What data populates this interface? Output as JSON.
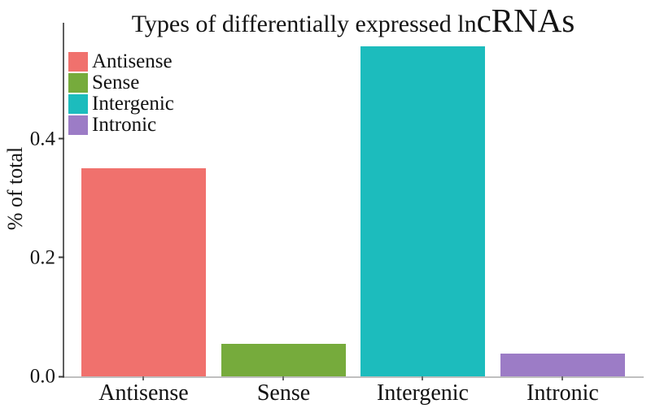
{
  "title_display": {
    "small": "Types of differentially expressed ln",
    "large": "cRNAs"
  },
  "chart_data": {
    "type": "bar",
    "title": "Types of differentially expressed lncRNAs",
    "categories": [
      "Antisense",
      "Sense",
      "Intergenic",
      "Intronic"
    ],
    "values": [
      0.35,
      0.055,
      0.555,
      0.038
    ],
    "colors": [
      "#F0716D",
      "#76AB3C",
      "#1CBCBD",
      "#9C7CC6"
    ],
    "legend_entries": [
      "Antisense",
      "Sense",
      "Intergenic",
      "Intronic"
    ],
    "legend_position": "top-left",
    "xlabel": "",
    "ylabel": "% of total",
    "yticks": [
      0,
      0.2,
      0.4
    ],
    "ytick_labels": [
      "0.0",
      "0.2",
      "0.4"
    ],
    "ylim": [
      0,
      0.595
    ],
    "grid": false
  }
}
